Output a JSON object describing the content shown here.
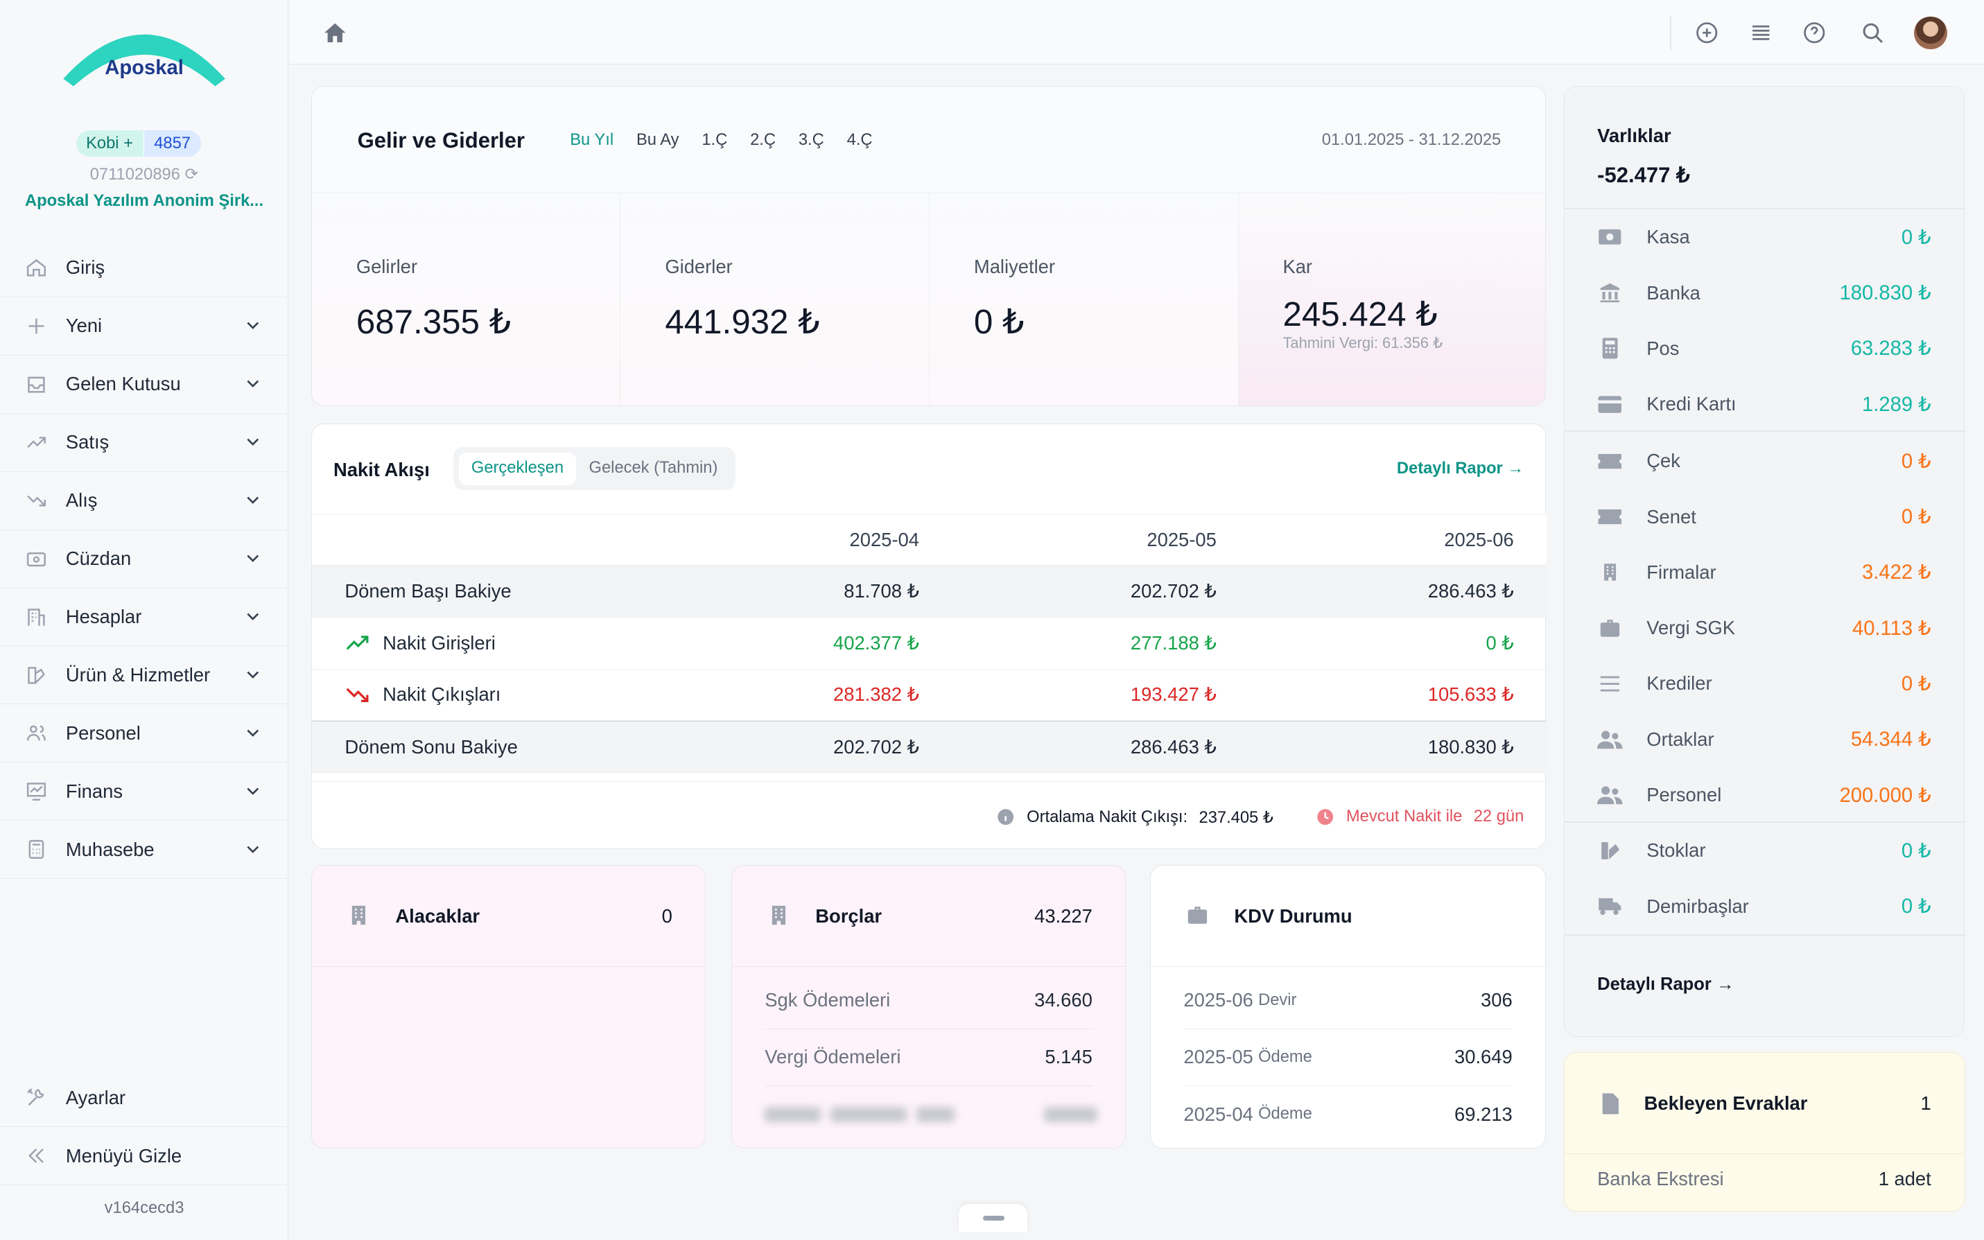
{
  "brand": {
    "name": "Aposkal",
    "accent": "#14b8a6",
    "plan_name": "Kobi +",
    "plan_code": "4857",
    "phone": "0711020896",
    "company": "Aposkal Yazılım Anonim Şirk..."
  },
  "sidebar": {
    "items": [
      {
        "label": "Giriş",
        "icon": "home-icon"
      },
      {
        "label": "Yeni",
        "icon": "plus-icon"
      },
      {
        "label": "Gelen Kutusu",
        "icon": "inbox-icon"
      },
      {
        "label": "Satış",
        "icon": "trend-up-icon"
      },
      {
        "label": "Alış",
        "icon": "trend-down-icon"
      },
      {
        "label": "Cüzdan",
        "icon": "wallet-icon"
      },
      {
        "label": "Hesaplar",
        "icon": "building-icon"
      },
      {
        "label": "Ürün & Hizmetler",
        "icon": "box-icon"
      },
      {
        "label": "Personel",
        "icon": "users-icon"
      },
      {
        "label": "Finans",
        "icon": "chart-icon"
      },
      {
        "label": "Muhasebe",
        "icon": "calculator-icon"
      }
    ],
    "settings": "Ayarlar",
    "hide_menu": "Menüyü Gizle",
    "version": "v164cecd3"
  },
  "income": {
    "title": "Gelir ve Giderler",
    "periods": [
      "Bu Yıl",
      "Bu Ay",
      "1.Ç",
      "2.Ç",
      "3.Ç",
      "4.Ç"
    ],
    "active_period": "Bu Yıl",
    "date_range": "01.01.2025 - 31.12.2025",
    "kpis": [
      {
        "label": "Gelirler",
        "value": "687.355 ₺"
      },
      {
        "label": "Giderler",
        "value": "441.932 ₺"
      },
      {
        "label": "Maliyetler",
        "value": "0 ₺"
      },
      {
        "label": "Kar",
        "value": "245.424 ₺",
        "sub": "Tahmini Vergi: 61.356 ₺"
      }
    ]
  },
  "cashflow": {
    "title": "Nakit Akışı",
    "tabs": [
      "Gerçekleşen",
      "Gelecek (Tahmin)"
    ],
    "detail_link": "Detaylı Rapor →",
    "columns": [
      "2025-04",
      "2025-05",
      "2025-06"
    ],
    "rows": [
      {
        "label": "Dönem Başı Bakiye",
        "values": [
          "81.708 ₺",
          "202.702 ₺",
          "286.463 ₺"
        ]
      },
      {
        "label": "Nakit Girişleri",
        "values": [
          "402.377 ₺",
          "277.188 ₺",
          "0 ₺"
        ]
      },
      {
        "label": "Nakit Çıkışları",
        "values": [
          "281.382 ₺",
          "193.427 ₺",
          "105.633 ₺"
        ]
      },
      {
        "label": "Dönem Sonu Bakiye",
        "values": [
          "202.702 ₺",
          "286.463 ₺",
          "180.830 ₺"
        ]
      }
    ],
    "avg_label": "Ortalama Nakit Çıkışı:",
    "avg_value": "237.405 ₺",
    "runway_label": "Mevcut Nakit ile",
    "runway_value": "22 gün"
  },
  "receivables": {
    "title": "Alacaklar",
    "value": "0"
  },
  "payables": {
    "title": "Borçlar",
    "value": "43.227",
    "rows": [
      {
        "label": "Sgk Ödemeleri",
        "value": "34.660"
      },
      {
        "label": "Vergi Ödemeleri",
        "value": "5.145"
      }
    ]
  },
  "vat": {
    "title": "KDV Durumu",
    "rows": [
      {
        "label": "2025-06",
        "suffix": "Devir",
        "value": "306"
      },
      {
        "label": "2025-05",
        "suffix": "Ödeme",
        "value": "30.649"
      },
      {
        "label": "2025-04",
        "suffix": "Ödeme",
        "value": "69.213"
      }
    ]
  },
  "assets": {
    "title": "Varlıklar",
    "total": "-52.477 ₺",
    "rows": [
      {
        "label": "Kasa",
        "value": "0 ₺",
        "color": "teal",
        "icon": "cash-icon"
      },
      {
        "label": "Banka",
        "value": "180.830 ₺",
        "color": "teal",
        "icon": "bank-icon"
      },
      {
        "label": "Pos",
        "value": "63.283 ₺",
        "color": "teal",
        "icon": "pos-icon"
      },
      {
        "label": "Kredi Kartı",
        "value": "1.289 ₺",
        "color": "teal",
        "icon": "credit-card-icon"
      },
      {
        "label": "Çek",
        "value": "0 ₺",
        "color": "orange",
        "icon": "ticket-icon"
      },
      {
        "label": "Senet",
        "value": "0 ₺",
        "color": "orange",
        "icon": "ticket-icon"
      },
      {
        "label": "Firmalar",
        "value": "3.422 ₺",
        "color": "orange",
        "icon": "building-icon"
      },
      {
        "label": "Vergi SGK",
        "value": "40.113 ₺",
        "color": "orange",
        "icon": "briefcase-icon"
      },
      {
        "label": "Krediler",
        "value": "0 ₺",
        "color": "orange",
        "icon": "list-icon"
      },
      {
        "label": "Ortaklar",
        "value": "54.344 ₺",
        "color": "orange",
        "icon": "users-icon"
      },
      {
        "label": "Personel",
        "value": "200.000 ₺",
        "color": "orange",
        "icon": "users-icon"
      },
      {
        "label": "Stoklar",
        "value": "0 ₺",
        "color": "teal",
        "icon": "box-icon"
      },
      {
        "label": "Demirbaşlar",
        "value": "0 ₺",
        "color": "teal",
        "icon": "truck-icon"
      }
    ],
    "detail_link": "Detaylı Rapor →"
  },
  "pending": {
    "title": "Bekleyen Evraklar",
    "count": "1",
    "row_label": "Banka Ekstresi",
    "row_value": "1 adet"
  }
}
